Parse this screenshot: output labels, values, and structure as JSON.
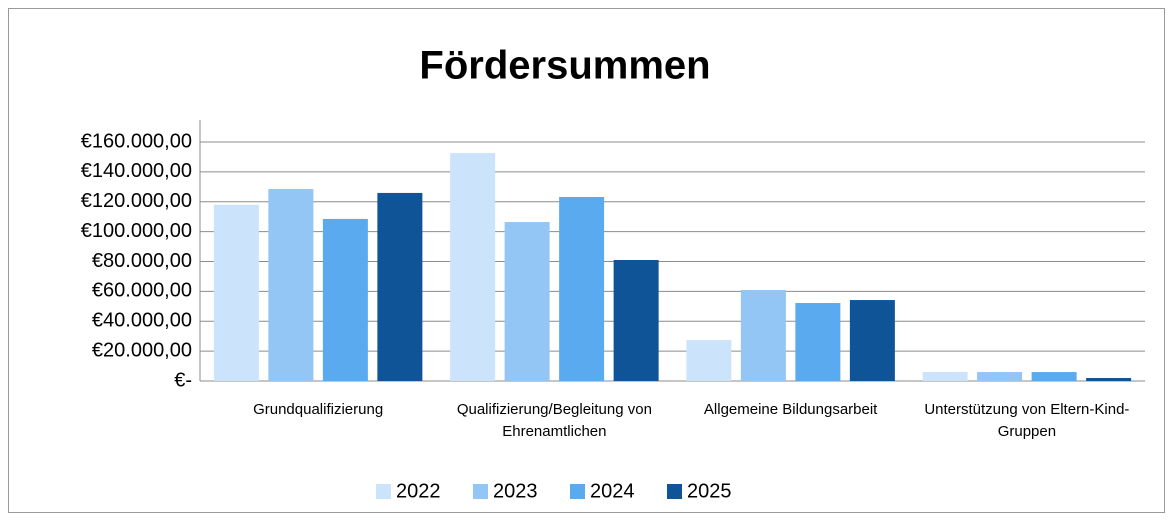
{
  "chart_data": {
    "type": "bar",
    "title": "Fördersummen",
    "categories": [
      "Grundqualifizierung",
      "Qualifizierung/Begleitung von Ehrenamtlichen",
      "Allgemeine Bildungsarbeit",
      "Unterstützung von Eltern-Kind-Gruppen"
    ],
    "series": [
      {
        "name": "2022",
        "color": "#cce4fb",
        "values": [
          118000,
          152600,
          27400,
          6000
        ]
      },
      {
        "name": "2023",
        "color": "#93c5f5",
        "values": [
          128500,
          106400,
          60900,
          6000
        ]
      },
      {
        "name": "2024",
        "color": "#5aaaf0",
        "values": [
          108500,
          123200,
          52200,
          6000
        ]
      },
      {
        "name": "2025",
        "color": "#0f5496",
        "values": [
          125900,
          81000,
          54200,
          2000
        ]
      }
    ],
    "ylim": [
      0,
      160000
    ],
    "yticks": [
      {
        "value": 0,
        "label": "€-"
      },
      {
        "value": 20000,
        "label": "€20.000,00"
      },
      {
        "value": 40000,
        "label": "€40.000,00"
      },
      {
        "value": 60000,
        "label": "€60.000,00"
      },
      {
        "value": 80000,
        "label": "€80.000,00"
      },
      {
        "value": 100000,
        "label": "€100.000,00"
      },
      {
        "value": 120000,
        "label": "€120.000,00"
      },
      {
        "value": 140000,
        "label": "€140.000,00"
      },
      {
        "value": 160000,
        "label": "€160.000,00"
      }
    ],
    "grid": true,
    "legend": "bottom"
  }
}
